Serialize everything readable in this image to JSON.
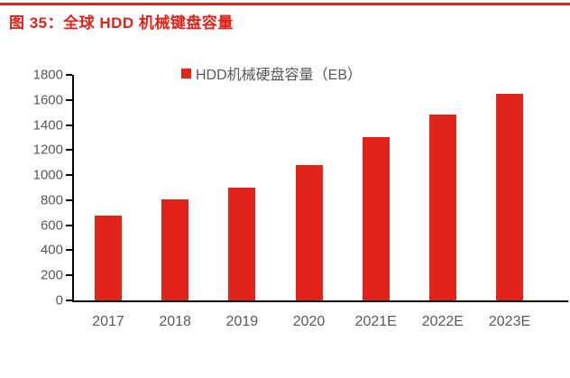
{
  "header": {
    "title": "图 35：全球 HDD 机械键盘容量"
  },
  "chart_data": {
    "type": "bar",
    "title": "图 35：全球 HDD 机械键盘容量",
    "legend_label": "HDD机械硬盘容量（EB）",
    "legend_position": "top-center",
    "categories": [
      "2017",
      "2018",
      "2019",
      "2020",
      "2021E",
      "2022E",
      "2023E"
    ],
    "values": [
      680,
      810,
      900,
      1080,
      1300,
      1480,
      1650
    ],
    "xlabel": "",
    "ylabel": "",
    "ylim": [
      0,
      1800
    ],
    "yticks": [
      0,
      200,
      400,
      600,
      800,
      1000,
      1200,
      1400,
      1600,
      1800
    ],
    "grid": false,
    "colors": {
      "bar": "#e2231a",
      "title": "#e2231a",
      "top_rule": "#e2231a",
      "axis": "#000000",
      "tick_label": "#58595b",
      "legend_text": "#58595b",
      "background": "#ffffff"
    }
  }
}
